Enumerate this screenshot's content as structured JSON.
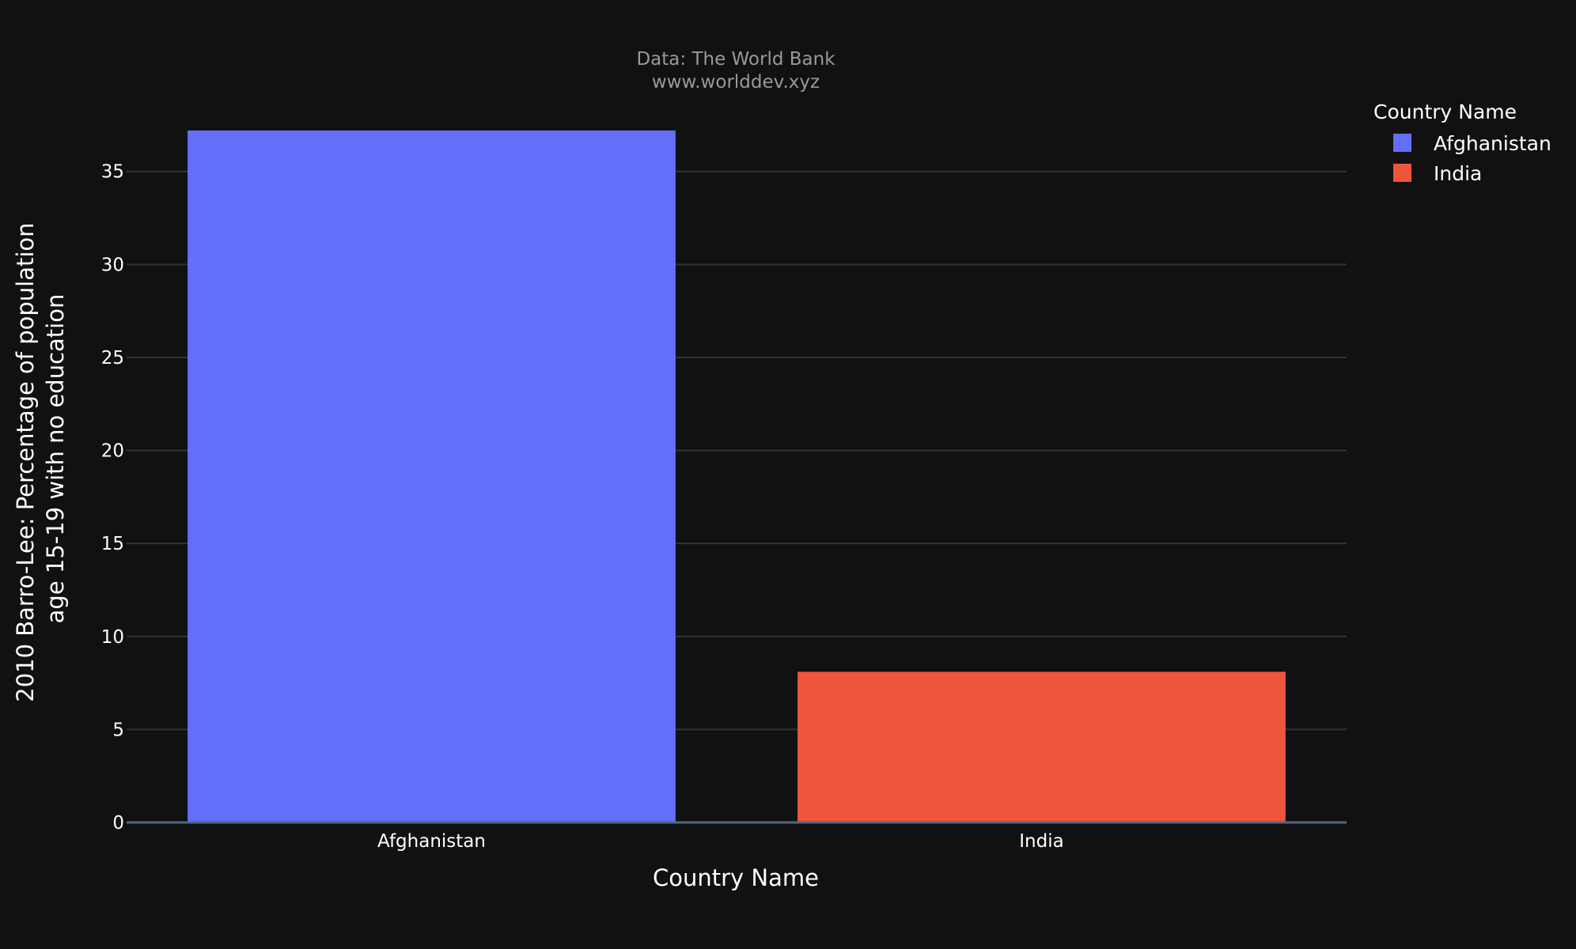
{
  "chart_data": {
    "type": "bar",
    "subtitle_lines": [
      "Data: The World Bank",
      "www.worlddev.xyz"
    ],
    "xlabel": "Country Name",
    "ylabel_lines": [
      "2010 Barro-Lee: Percentage of population",
      "age 15-19 with no education"
    ],
    "categories": [
      "Afghanistan",
      "India"
    ],
    "series": [
      {
        "name": "Afghanistan",
        "color": "#636efa",
        "values": [
          37.2,
          null
        ]
      },
      {
        "name": "India",
        "color": "#ef553b",
        "values": [
          null,
          8.1
        ]
      }
    ],
    "ylim": [
      0,
      37.2
    ],
    "yticks": [
      0,
      5,
      10,
      15,
      20,
      25,
      30,
      35
    ],
    "grid": true,
    "legend": {
      "title": "Country Name",
      "placement": "top-right"
    }
  },
  "colors": {
    "background": "#111111",
    "grid": "#283442",
    "axis_line": "#506784"
  }
}
